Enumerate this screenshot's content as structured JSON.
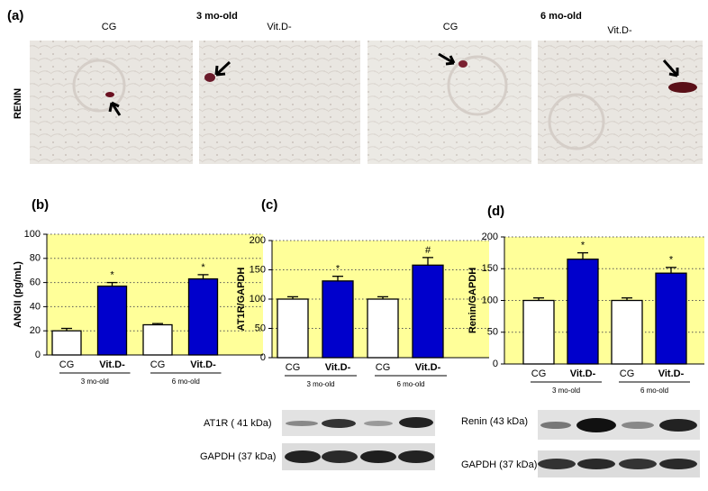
{
  "panel_a": {
    "label": "(a)",
    "row_label": "RENIN",
    "groups": [
      "3 mo-old",
      "6 mo-old"
    ],
    "images": [
      "CG",
      "Vit.D-",
      "CG",
      "Vit.D-"
    ]
  },
  "chart_data": [
    {
      "type": "bar",
      "panel": "(b)",
      "ylabel": "ANGII (pg/mL)",
      "categories": [
        "CG",
        "Vit.D-",
        "CG",
        "Vit.D-"
      ],
      "groups": [
        "3 mo-old",
        "6 mo-old"
      ],
      "values": [
        20,
        57,
        25,
        63
      ],
      "errors": [
        2,
        3,
        1,
        3.5
      ],
      "markers": [
        null,
        "*",
        null,
        "*"
      ],
      "colors": [
        "#ffffff",
        "#0000cc",
        "#ffffff",
        "#0000cc"
      ],
      "ylim": [
        0,
        100
      ],
      "yticks": [
        0,
        20,
        40,
        60,
        80,
        100
      ],
      "grid": true
    },
    {
      "type": "bar",
      "panel": "(c)",
      "ylabel": "AT1R/GAPDH",
      "categories": [
        "CG",
        "Vit.D-",
        "CG",
        "Vit.D-"
      ],
      "groups": [
        "3 mo-old",
        "6 mo-old"
      ],
      "values": [
        100,
        131,
        100,
        158
      ],
      "errors": [
        4,
        8,
        4,
        13
      ],
      "markers": [
        null,
        "*",
        null,
        "#"
      ],
      "colors": [
        "#ffffff",
        "#0000cc",
        "#ffffff",
        "#0000cc"
      ],
      "ylim": [
        0,
        200
      ],
      "yticks": [
        0,
        50,
        100,
        150,
        200
      ],
      "grid": true
    },
    {
      "type": "bar",
      "panel": "(d)",
      "ylabel": "Renin/GAPDH",
      "categories": [
        "CG",
        "Vit.D-",
        "CG",
        "Vit.D-"
      ],
      "groups": [
        "3 mo-old",
        "6 mo-old"
      ],
      "values": [
        100,
        165,
        100,
        143
      ],
      "errors": [
        4,
        10,
        4,
        9
      ],
      "markers": [
        null,
        "*",
        null,
        "*"
      ],
      "colors": [
        "#ffffff",
        "#0000cc",
        "#ffffff",
        "#0000cc"
      ],
      "ylim": [
        0,
        200
      ],
      "yticks": [
        0,
        50,
        100,
        150,
        200
      ],
      "grid": true
    }
  ],
  "blots": {
    "c": [
      "AT1R ( 41 kDa)",
      "GAPDH (37 kDa)"
    ],
    "d": [
      "Renin (43 kDa)",
      "GAPDH (37 kDa)"
    ]
  }
}
